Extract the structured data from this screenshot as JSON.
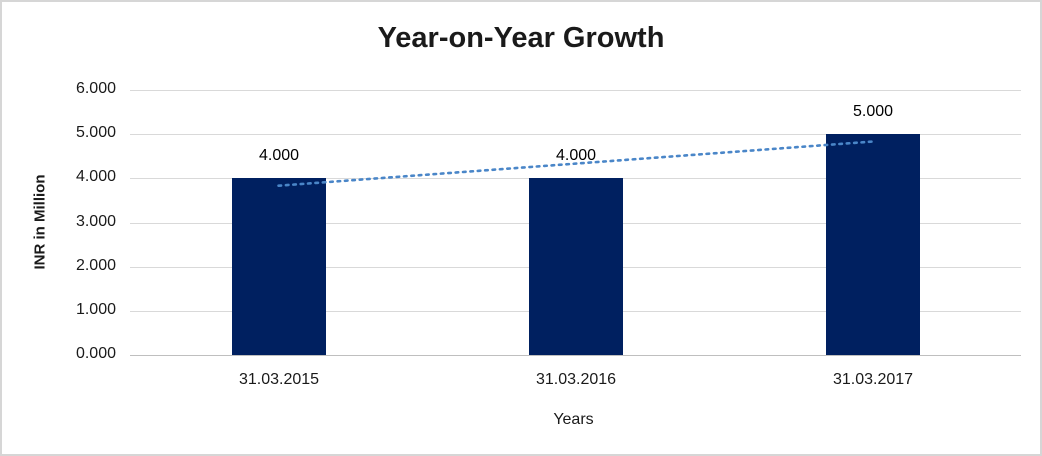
{
  "chart_data": {
    "type": "bar",
    "title": "Year-on-Year Growth",
    "xlabel": "Years",
    "ylabel": "INR in Million",
    "categories": [
      "31.03.2015",
      "31.03.2016",
      "31.03.2017"
    ],
    "values": [
      4000,
      4000,
      5000
    ],
    "value_labels": [
      "4.000",
      "4.000",
      "5.000"
    ],
    "y_ticks": [
      {
        "value": 0,
        "label": "0.000"
      },
      {
        "value": 1000,
        "label": "1.000"
      },
      {
        "value": 2000,
        "label": "2.000"
      },
      {
        "value": 3000,
        "label": "3.000"
      },
      {
        "value": 4000,
        "label": "4.000"
      },
      {
        "value": 5000,
        "label": "5.000"
      },
      {
        "value": 6000,
        "label": "6.000"
      }
    ],
    "ylim": [
      0,
      6000
    ],
    "grid": "horizontal",
    "legend": false,
    "colors": {
      "bar": "#002060",
      "trendline": "#4a86c8",
      "gridline": "#d9d9d9",
      "axis_line": "#bfbfbf"
    },
    "trendline": {
      "name": "linear-trend",
      "style": "dotted",
      "points": [
        3833,
        4333,
        4833
      ]
    }
  }
}
